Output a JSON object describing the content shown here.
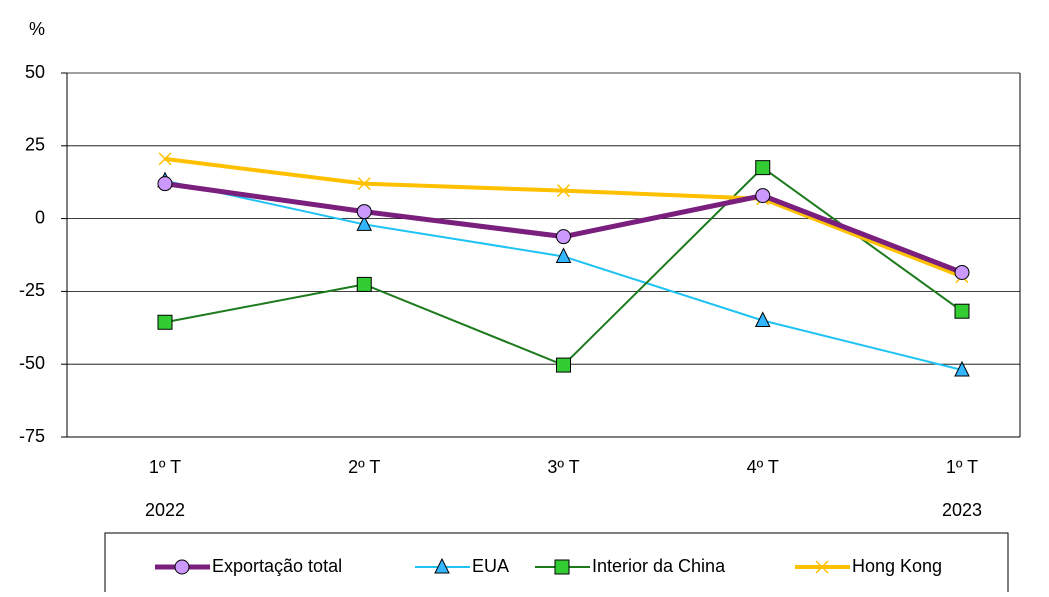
{
  "chart_data": {
    "type": "line",
    "y_label": "%",
    "categories": [
      "1º T",
      "2º T",
      "3º T",
      "4º T",
      "1º T"
    ],
    "years": [
      "2022",
      null,
      null,
      null,
      "2023"
    ],
    "ylim": [
      -75,
      50
    ],
    "yticks": [
      -75,
      -50,
      -25,
      0,
      25,
      50
    ],
    "grid": true,
    "legend": "bottom",
    "series": [
      {
        "name": "Exportação total",
        "color": "#7a1f7e",
        "marker": "circle",
        "marker_color": "#cc99ff",
        "width": 5,
        "values": [
          12,
          2.4,
          -6.2,
          7.9,
          -18.5
        ]
      },
      {
        "name": "EUA",
        "color": "#1fc3f3",
        "marker": "triangle",
        "marker_color": "#33b5ff",
        "width": 2,
        "values": [
          13,
          -2,
          -13,
          -35,
          -52
        ]
      },
      {
        "name": "Interior da China",
        "color": "#1d7a1d",
        "marker": "square",
        "marker_color": "#33cc33",
        "width": 2,
        "values": [
          -35.6,
          -22.6,
          -50.3,
          17.5,
          -31.8
        ]
      },
      {
        "name": "Hong Kong",
        "color": "#ffc000",
        "marker": "x",
        "marker_color": "#ffc000",
        "width": 4,
        "values": [
          20.5,
          12,
          9.6,
          6.8,
          -19.9
        ]
      }
    ]
  }
}
